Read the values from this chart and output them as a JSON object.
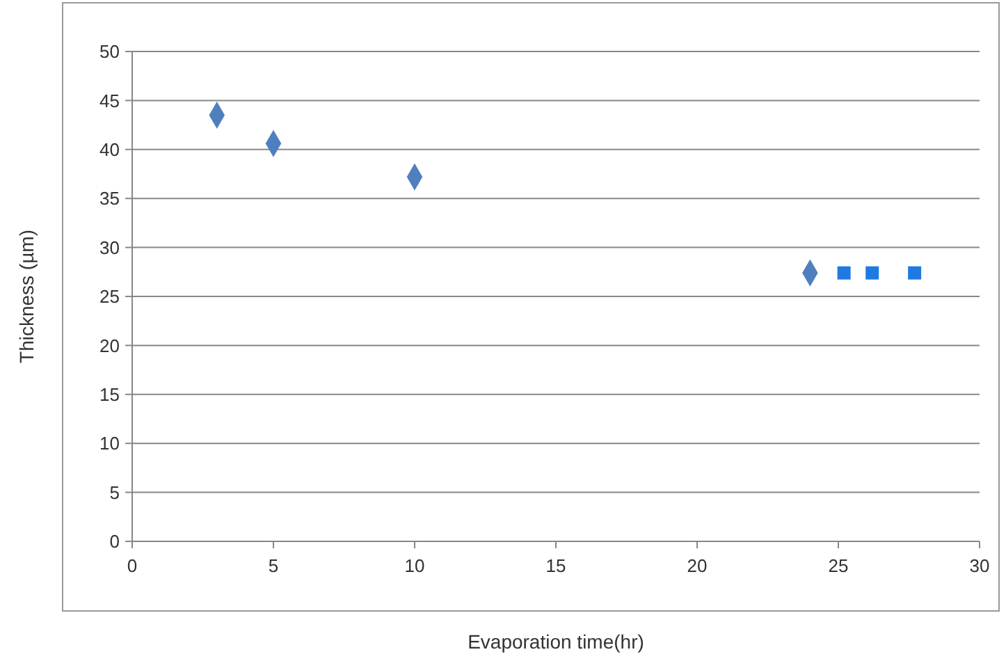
{
  "chart_data": {
    "type": "scatter",
    "xlabel": "Evaporation time(hr)",
    "ylabel": "Thickness (µm)",
    "xlim": [
      0,
      30
    ],
    "xticks": [
      0,
      5,
      10,
      15,
      20,
      25,
      30
    ],
    "ylim": [
      0,
      50
    ],
    "yticks": [
      0,
      5,
      10,
      15,
      20,
      25,
      30,
      35,
      40,
      45,
      50
    ],
    "grid": "y",
    "series": [
      {
        "color": "#4f7fbf",
        "marker": "diamond",
        "x": [
          3,
          5,
          10,
          24
        ],
        "values": [
          43.5,
          40.6,
          37.2,
          27.4
        ]
      },
      {
        "color": "#1e7ae0",
        "marker": "square",
        "x": [
          25.2,
          26.2,
          27.7
        ],
        "values": [
          27.4,
          27.4,
          27.4
        ]
      }
    ]
  }
}
